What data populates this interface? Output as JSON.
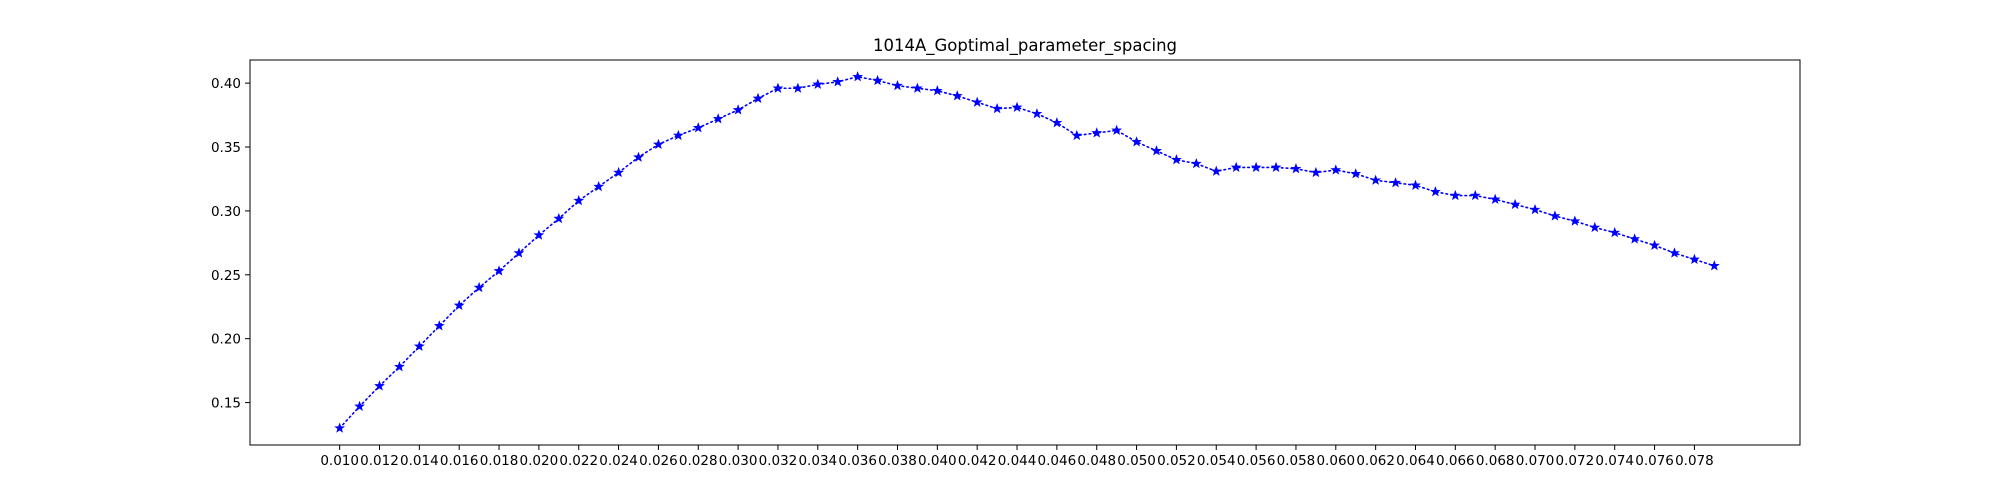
{
  "chart_data": {
    "type": "line",
    "title": "1014A_Goptimal_parameter_spacing",
    "xlabel": "",
    "ylabel": "",
    "xlim": [
      0.0055,
      0.0833
    ],
    "ylim": [
      0.1168,
      0.4181
    ],
    "grid": false,
    "x_ticks": [
      "0.010",
      "0.012",
      "0.014",
      "0.016",
      "0.018",
      "0.020",
      "0.022",
      "0.024",
      "0.026",
      "0.028",
      "0.030",
      "0.032",
      "0.034",
      "0.036",
      "0.038",
      "0.040",
      "0.042",
      "0.044",
      "0.046",
      "0.048",
      "0.050",
      "0.052",
      "0.054",
      "0.056",
      "0.058",
      "0.060",
      "0.062",
      "0.064",
      "0.066",
      "0.068",
      "0.070",
      "0.072",
      "0.074",
      "0.076",
      "0.078"
    ],
    "y_ticks": [
      "0.15",
      "0.20",
      "0.25",
      "0.30",
      "0.35",
      "0.40"
    ],
    "series": [
      {
        "color": "#0000ff",
        "line_style": "dotted",
        "marker": "star",
        "x": [
          0.01,
          0.011,
          0.012,
          0.013,
          0.014,
          0.015,
          0.016,
          0.017,
          0.018,
          0.019,
          0.02,
          0.021,
          0.022,
          0.023,
          0.024,
          0.025,
          0.026,
          0.027,
          0.028,
          0.029,
          0.03,
          0.031,
          0.032,
          0.033,
          0.034,
          0.035,
          0.036,
          0.037,
          0.038,
          0.039,
          0.04,
          0.041,
          0.042,
          0.043,
          0.044,
          0.045,
          0.046,
          0.047,
          0.048,
          0.049,
          0.05,
          0.051,
          0.052,
          0.053,
          0.054,
          0.055,
          0.056,
          0.057,
          0.058,
          0.059,
          0.06,
          0.061,
          0.062,
          0.063,
          0.064,
          0.065,
          0.066,
          0.067,
          0.068,
          0.069,
          0.07,
          0.071,
          0.072,
          0.073,
          0.074,
          0.075,
          0.076,
          0.077,
          0.078,
          0.079
        ],
        "values": [
          0.13,
          0.147,
          0.163,
          0.178,
          0.194,
          0.21,
          0.226,
          0.24,
          0.253,
          0.267,
          0.281,
          0.294,
          0.308,
          0.319,
          0.33,
          0.342,
          0.352,
          0.359,
          0.365,
          0.372,
          0.379,
          0.388,
          0.396,
          0.396,
          0.399,
          0.401,
          0.405,
          0.402,
          0.398,
          0.396,
          0.394,
          0.39,
          0.385,
          0.38,
          0.381,
          0.376,
          0.369,
          0.359,
          0.361,
          0.363,
          0.354,
          0.347,
          0.34,
          0.337,
          0.331,
          0.334,
          0.334,
          0.334,
          0.333,
          0.33,
          0.332,
          0.329,
          0.324,
          0.322,
          0.32,
          0.315,
          0.312,
          0.312,
          0.309,
          0.305,
          0.301,
          0.296,
          0.292,
          0.287,
          0.283,
          0.278,
          0.273,
          0.267,
          0.262,
          0.257
        ]
      }
    ]
  }
}
